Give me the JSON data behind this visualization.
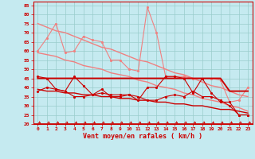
{
  "x": [
    0,
    1,
    2,
    3,
    4,
    5,
    6,
    7,
    8,
    9,
    10,
    11,
    12,
    13,
    14,
    15,
    16,
    17,
    18,
    19,
    20,
    21,
    22,
    23
  ],
  "line1_light": [
    60,
    67,
    75,
    59,
    60,
    68,
    66,
    65,
    55,
    55,
    50,
    49,
    84,
    70,
    46,
    46,
    46,
    45,
    45,
    45,
    44,
    32,
    33,
    40
  ],
  "line2_light_upper": [
    75,
    73,
    71,
    70,
    68,
    66,
    64,
    62,
    61,
    59,
    57,
    55,
    54,
    52,
    50,
    48,
    47,
    45,
    43,
    41,
    40,
    38,
    36,
    35
  ],
  "line3_light_lower": [
    59,
    58,
    57,
    55,
    54,
    52,
    51,
    50,
    48,
    47,
    46,
    44,
    43,
    41,
    40,
    39,
    37,
    36,
    34,
    33,
    32,
    30,
    29,
    27
  ],
  "line4_dark": [
    46,
    45,
    39,
    38,
    46,
    41,
    36,
    39,
    35,
    35,
    36,
    33,
    40,
    40,
    46,
    46,
    45,
    37,
    45,
    37,
    32,
    32,
    25,
    25
  ],
  "line5_dark_upper": [
    45,
    45,
    45,
    45,
    45,
    45,
    45,
    45,
    45,
    45,
    45,
    45,
    45,
    45,
    45,
    45,
    45,
    45,
    45,
    45,
    45,
    38,
    38,
    38
  ],
  "line6_dark": [
    38,
    40,
    39,
    38,
    35,
    35,
    36,
    37,
    36,
    36,
    36,
    35,
    33,
    33,
    35,
    36,
    35,
    38,
    35,
    35,
    33,
    30,
    25,
    25
  ],
  "line7_dark_lower": [
    39,
    38,
    38,
    37,
    37,
    36,
    36,
    35,
    35,
    34,
    34,
    33,
    33,
    32,
    32,
    31,
    31,
    30,
    30,
    29,
    28,
    28,
    27,
    26
  ],
  "color_light": "#f08080",
  "color_dark": "#cc0000",
  "bg_color": "#c5eaf0",
  "grid_color": "#99cccc",
  "xlabel": "Vent moyen/en rafales ( km/h )",
  "ylim": [
    20,
    87
  ],
  "xlim": [
    0,
    23
  ],
  "yticks": [
    20,
    25,
    30,
    35,
    40,
    45,
    50,
    55,
    60,
    65,
    70,
    75,
    80,
    85
  ]
}
